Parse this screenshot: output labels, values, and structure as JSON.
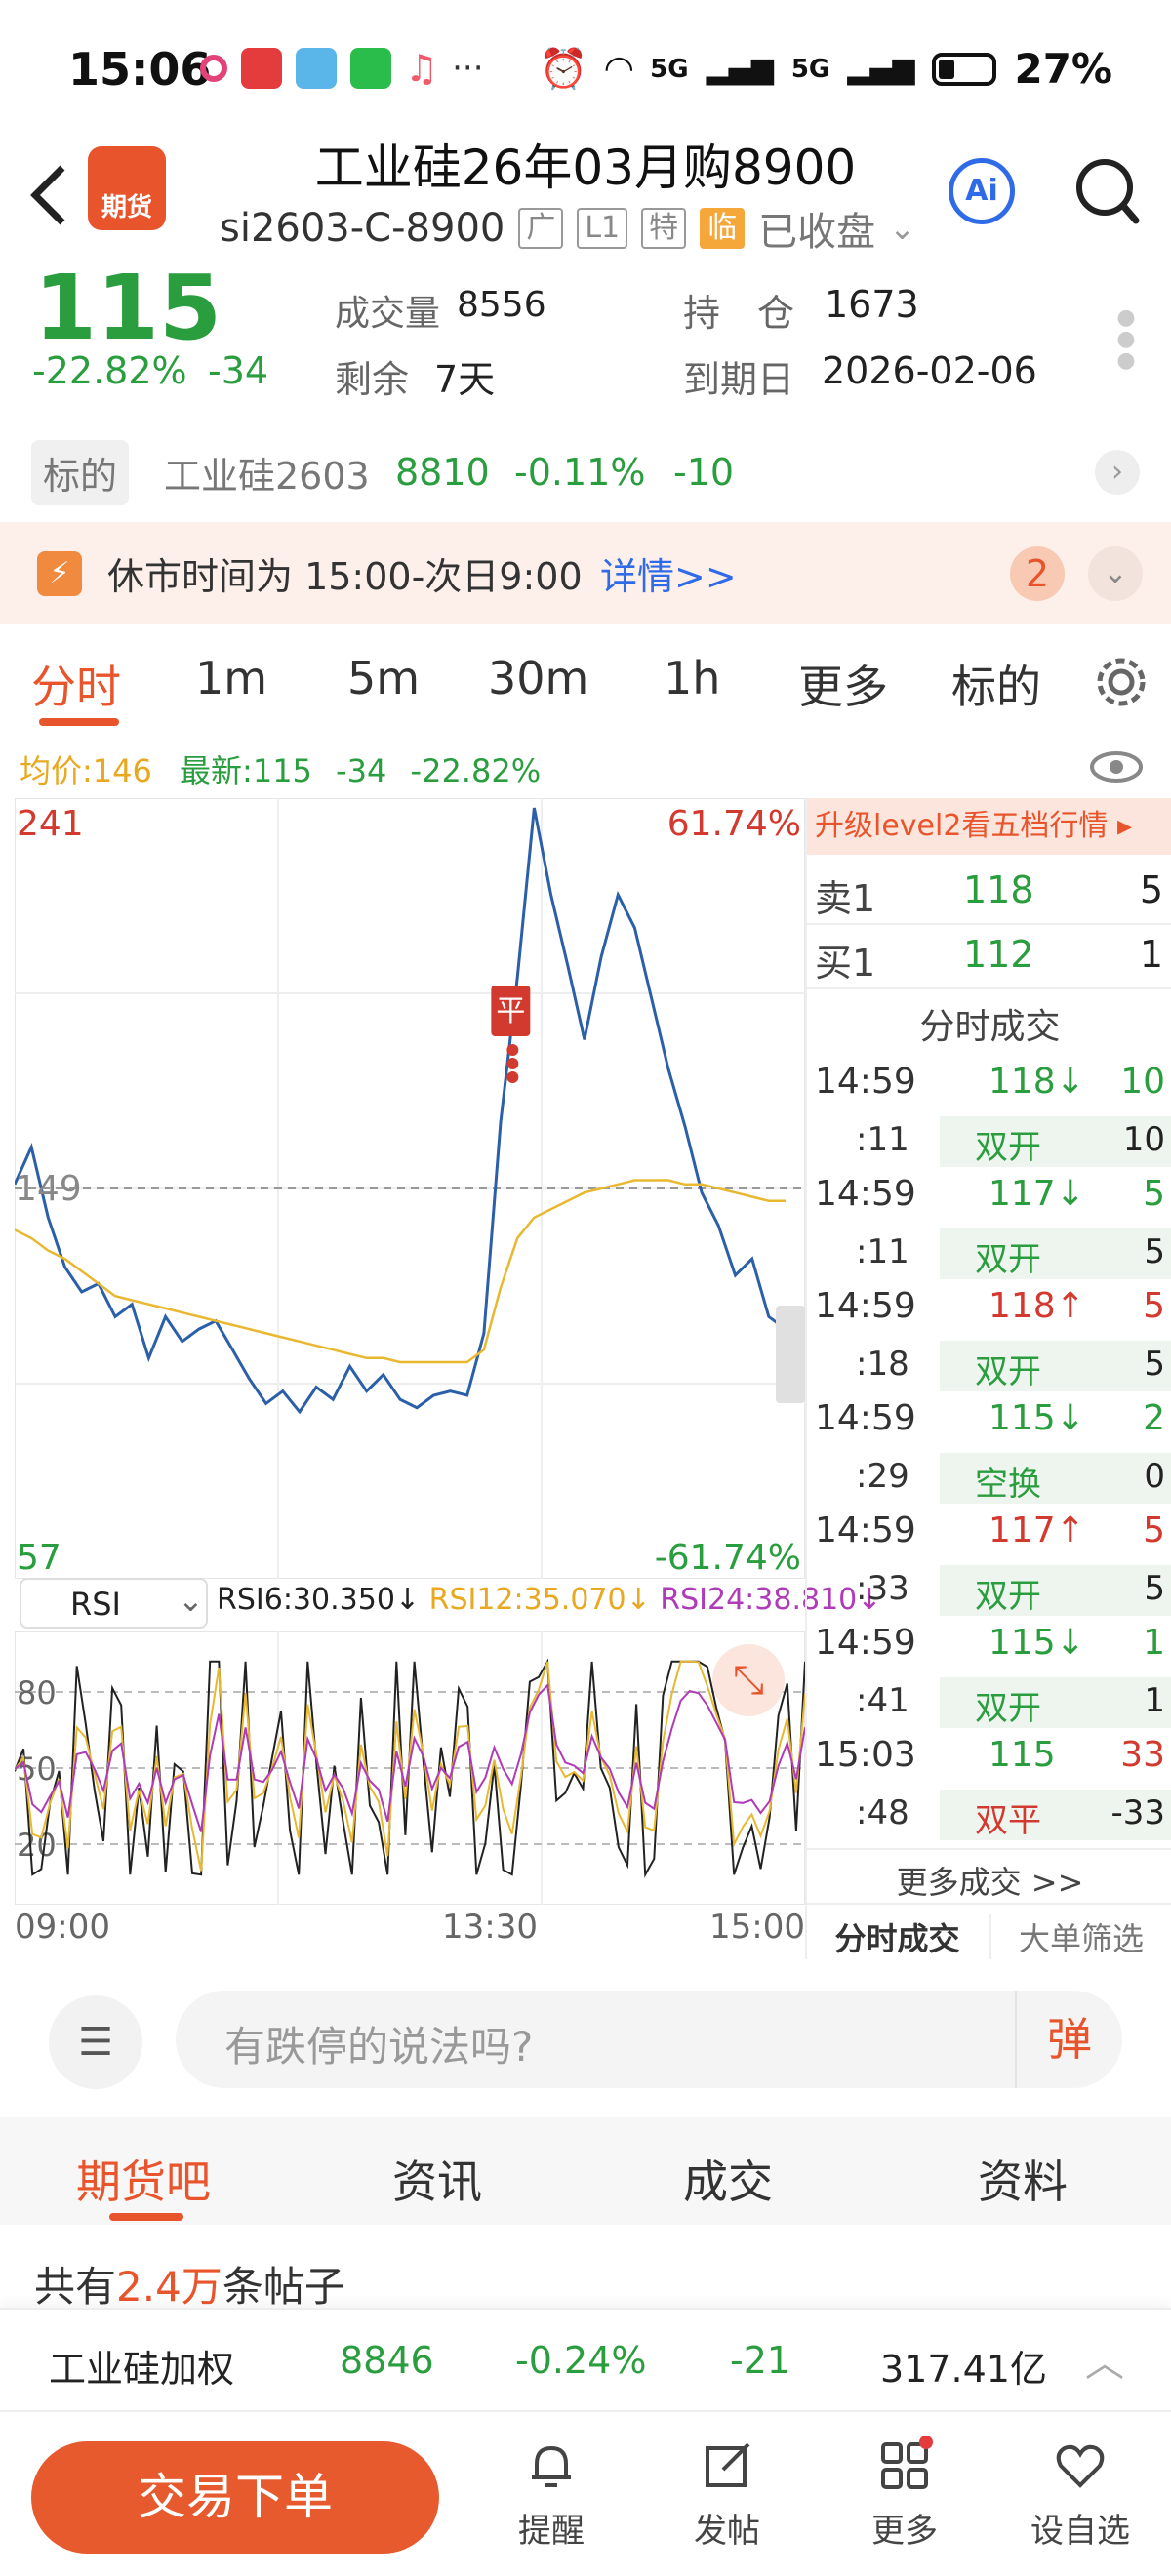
{
  "status_bar": {
    "time": "15:06",
    "battery": "27%",
    "network1": "5G",
    "network2": "5G",
    "more": "···"
  },
  "header": {
    "title": "工业硅26年03月购8900",
    "code": "si2603-C-8900",
    "tags": [
      "广",
      "L1",
      "特",
      "临"
    ],
    "market_status": "已收盘"
  },
  "quote": {
    "price": "115",
    "change_pct": "-22.82%",
    "change": "-34",
    "volume_label": "成交量",
    "volume": "8556",
    "position_label": "持　仓",
    "position": "1673",
    "remaining_label": "剩余",
    "remaining": "7天",
    "expiry_label": "到期日",
    "expiry": "2026-02-06"
  },
  "underlying": {
    "label": "标的",
    "name": "工业硅2603",
    "price": "8810",
    "change_pct": "-0.11%",
    "change": "-10"
  },
  "notice": {
    "text": "休市时间为 15:00-次日9:00",
    "link": "详情>>",
    "badge": "2"
  },
  "tabs": {
    "items": [
      "分时",
      "1m",
      "5m",
      "30m",
      "1h",
      "更多",
      "标的"
    ]
  },
  "legend": {
    "avg": "均价:146",
    "latest": "最新:115",
    "change": "-34",
    "pct": "-22.82%"
  },
  "chart": {
    "y_top": "241",
    "y_mid": "149",
    "y_bottom": "57",
    "pct_top": "61.74%",
    "pct_bottom": "-61.74%",
    "marker": "平",
    "x_labels": [
      "09:00",
      "13:30",
      "15:00"
    ],
    "rsi_selector": "RSI",
    "rsi6": "RSI6:30.350↓",
    "rsi12": "RSI12:35.070↓",
    "rsi24": "RSI24:38.810↓",
    "rsi_levels": [
      "80",
      "50",
      "20"
    ]
  },
  "chart_data": {
    "type": "line",
    "title": "",
    "xlabel": "",
    "ylabel": "",
    "x_ticks": [
      "09:00",
      "13:30",
      "15:00"
    ],
    "ylim": [
      57,
      241
    ],
    "reference_price": 149,
    "series": [
      {
        "values": [
          150,
          159,
          142,
          130,
          124,
          126,
          118,
          121,
          108,
          118,
          112,
          115,
          117,
          110,
          103,
          97,
          100,
          95,
          101,
          98,
          106,
          100,
          104,
          98,
          96,
          99,
          100,
          99,
          114,
          165,
          200,
          241,
          220,
          203,
          185,
          205,
          220,
          212,
          195,
          178,
          164,
          148,
          140,
          128,
          132,
          118,
          115
        ]
      },
      {
        "values": [
          139,
          137,
          134,
          132,
          129,
          126,
          123,
          122,
          121,
          120,
          119,
          118,
          117,
          116,
          115,
          114,
          113,
          112,
          111,
          110,
          109,
          108,
          108,
          107,
          107,
          107,
          107,
          107,
          110,
          125,
          137,
          142,
          144,
          146,
          148,
          149,
          150,
          151,
          151,
          151,
          150,
          150,
          149,
          148,
          147,
          146,
          146
        ]
      }
    ]
  },
  "side_panel": {
    "banner": "升级level2看五档行情 ▸",
    "ask_label": "卖1",
    "ask_price": "118",
    "ask_vol": "5",
    "bid_label": "买1",
    "bid_price": "112",
    "bid_vol": "1",
    "trades_title": "分时成交",
    "trades": [
      {
        "time": "14:59",
        "sec": ":11",
        "price": "118↓",
        "vol": "10",
        "type": "双开",
        "tvol": "10",
        "pcolor": "#2a9d3f",
        "vcolor": "#2a9d3f"
      },
      {
        "time": "14:59",
        "sec": ":11",
        "price": "117↓",
        "vol": "5",
        "type": "双开",
        "tvol": "5",
        "pcolor": "#2a9d3f",
        "vcolor": "#2a9d3f"
      },
      {
        "time": "14:59",
        "sec": ":18",
        "price": "118↑",
        "vol": "5",
        "type": "双开",
        "tvol": "5",
        "pcolor": "#d23a2f",
        "vcolor": "#d23a2f"
      },
      {
        "time": "14:59",
        "sec": ":29",
        "price": "115↓",
        "vol": "2",
        "type": "空换",
        "tvol": "0",
        "pcolor": "#2a9d3f",
        "vcolor": "#2a9d3f"
      },
      {
        "time": "14:59",
        "sec": ":33",
        "price": "117↑",
        "vol": "5",
        "type": "双开",
        "tvol": "5",
        "pcolor": "#d23a2f",
        "vcolor": "#d23a2f"
      },
      {
        "time": "14:59",
        "sec": ":41",
        "price": "115↓",
        "vol": "1",
        "type": "双开",
        "tvol": "1",
        "pcolor": "#2a9d3f",
        "vcolor": "#2a9d3f"
      },
      {
        "time": "15:03",
        "sec": ":48",
        "price": "115",
        "vol": "33",
        "type": "双平",
        "tvol": "-33",
        "pcolor": "#2a9d3f",
        "vcolor": "#d23a2f"
      }
    ],
    "more": "更多成交 >>",
    "tab1": "分时成交",
    "tab2": "大单筛选"
  },
  "comment": {
    "placeholder": "有跌停的说法吗?",
    "danmu": "弹"
  },
  "forum_tabs": {
    "items": [
      "期货吧",
      "资讯",
      "成交",
      "资料"
    ]
  },
  "posts": {
    "prefix": "共有",
    "count": "2.4万",
    "suffix": "条帖子"
  },
  "ticker": {
    "name": "工业硅加权",
    "price": "8846",
    "pct": "-0.24%",
    "change": "-21",
    "amount": "317.41亿"
  },
  "footer": {
    "trade": "交易下单",
    "items": [
      "提醒",
      "发帖",
      "更多",
      "设自选"
    ]
  }
}
